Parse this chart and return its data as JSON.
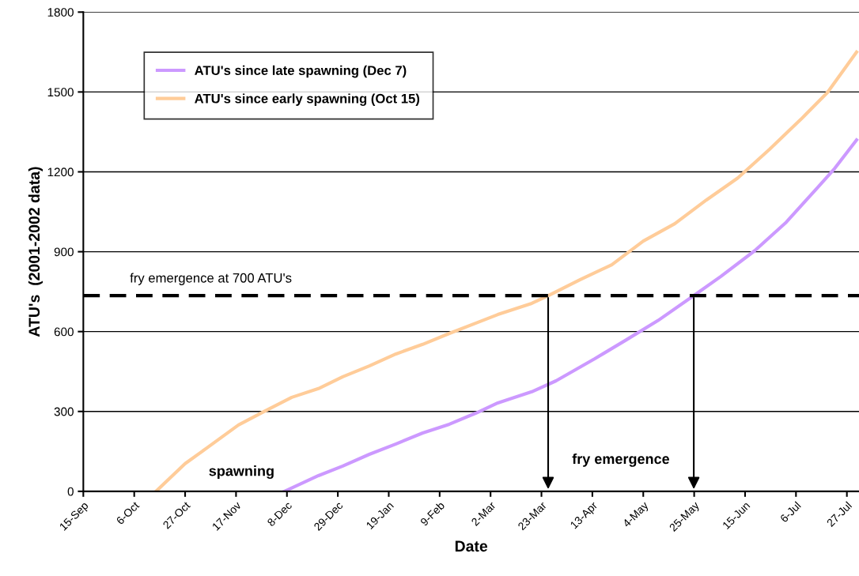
{
  "chart_data": {
    "type": "line",
    "xlabel": "Date",
    "ylabel": "ATU's  (2001-2002 data)",
    "xlim": [
      "2001-09-15",
      "2002-08-01"
    ],
    "ylim": [
      0,
      1800
    ],
    "yticks": [
      0,
      300,
      600,
      900,
      1200,
      1500,
      1800
    ],
    "xticks": [
      {
        "value": "2001-09-15",
        "label": "15-Sep"
      },
      {
        "value": "2001-10-06",
        "label": "6-Oct"
      },
      {
        "value": "2001-10-27",
        "label": "27-Oct"
      },
      {
        "value": "2001-11-17",
        "label": "17-Nov"
      },
      {
        "value": "2001-12-08",
        "label": "8-Dec"
      },
      {
        "value": "2001-12-29",
        "label": "29-Dec"
      },
      {
        "value": "2002-01-19",
        "label": "19-Jan"
      },
      {
        "value": "2002-02-09",
        "label": "9-Feb"
      },
      {
        "value": "2002-03-02",
        "label": "2-Mar"
      },
      {
        "value": "2002-03-23",
        "label": "23-Mar"
      },
      {
        "value": "2002-04-13",
        "label": "13-Apr"
      },
      {
        "value": "2002-05-04",
        "label": "4-May"
      },
      {
        "value": "2002-05-25",
        "label": "25-May"
      },
      {
        "value": "2002-06-15",
        "label": "15-Jun"
      },
      {
        "value": "2002-07-06",
        "label": "6-Jul"
      },
      {
        "value": "2002-07-27",
        "label": "27-Jul"
      }
    ],
    "grid": "y",
    "legend": "top left",
    "marker": "none",
    "line_style": "solid",
    "series": [
      {
        "name": "ATU's since late spawning (Dec 7)",
        "color": "#cc99ff",
        "x": [
          "2001-12-07",
          "2001-12-21",
          "2001-12-31",
          "2002-01-11",
          "2002-01-22",
          "2002-02-02",
          "2002-02-13",
          "2002-02-24",
          "2002-03-05",
          "2002-03-19",
          "2002-03-29",
          "2002-04-14",
          "2002-04-27",
          "2002-05-10",
          "2002-05-25",
          "2002-06-05",
          "2002-06-19",
          "2002-07-02",
          "2002-07-15",
          "2002-07-22",
          "2002-07-31"
        ],
        "values": [
          0,
          59,
          95,
          139,
          178,
          219,
          252,
          294,
          332,
          374,
          415,
          498,
          569,
          641,
          736,
          807,
          904,
          1011,
          1142,
          1213,
          1320
        ]
      },
      {
        "name": "ATU's since early spawning (Oct 15)",
        "color": "#ffcc99",
        "x": [
          "2001-10-15",
          "2001-10-27",
          "2001-11-05",
          "2001-11-18",
          "2001-11-29",
          "2001-12-10",
          "2001-12-21",
          "2001-12-31",
          "2002-01-11",
          "2002-01-22",
          "2002-02-02",
          "2002-02-13",
          "2002-02-24",
          "2002-03-05",
          "2002-03-19",
          "2002-03-26",
          "2002-04-08",
          "2002-04-21",
          "2002-05-04",
          "2002-05-17",
          "2002-05-30",
          "2002-06-12",
          "2002-06-25",
          "2002-07-08",
          "2002-07-19",
          "2002-07-31"
        ],
        "values": [
          0,
          104,
          163,
          249,
          302,
          353,
          386,
          430,
          471,
          516,
          552,
          593,
          632,
          664,
          706,
          736,
          795,
          851,
          940,
          1005,
          1094,
          1177,
          1284,
          1397,
          1498,
          1650
        ]
      }
    ],
    "ref_lines": [
      {
        "axis": "y",
        "value": 735,
        "label": "fry emergence at 700 ATU's",
        "color": "#000000",
        "line_style": "dashed"
      }
    ],
    "annotations": [
      "spawning",
      "fry emergence"
    ]
  }
}
